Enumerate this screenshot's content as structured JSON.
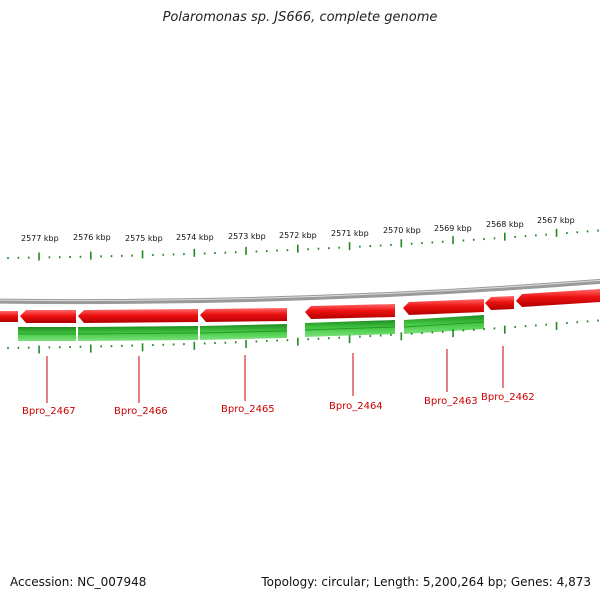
{
  "title": "Polaromonas sp. JS666, complete genome",
  "kbp_labels": [
    "2577 kbp",
    "2576 kbp",
    "2575 kbp",
    "2574 kbp",
    "2573 kbp",
    "2572 kbp",
    "2571 kbp",
    "2570 kbp",
    "2569 kbp",
    "2568 kbp",
    "2567 kbp"
  ],
  "genes": [
    "Bpro_2467",
    "Bpro_2466",
    "Bpro_2465",
    "Bpro_2464",
    "Bpro_2463",
    "Bpro_2462"
  ],
  "footer": {
    "accession": "Accession: NC_007948",
    "summary": "Topology: circular; Length: 5,200,264 bp; Genes: 4,873"
  },
  "colors": {
    "feature": "#ee1111",
    "cds": "#33bb33",
    "tick": "#228822",
    "label": "#cc0000",
    "backbone": "#888888"
  }
}
